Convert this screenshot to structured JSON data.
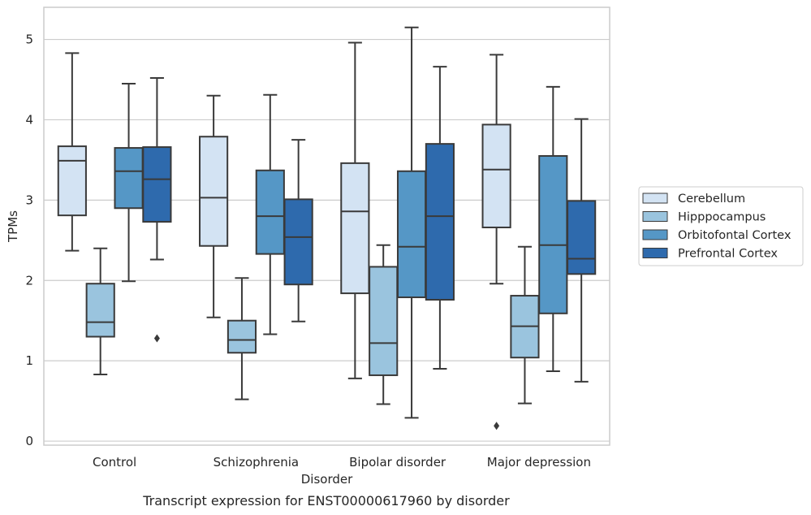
{
  "chart_data": {
    "type": "box",
    "title": "",
    "caption": "Transcript expression for ENST00000617960 by disorder",
    "xlabel": "Disorder",
    "ylabel": "TPMs",
    "ylim": [
      -0.05,
      5.4
    ],
    "yticks": [
      0,
      1,
      2,
      3,
      4,
      5
    ],
    "grid": true,
    "legend_position": "right",
    "categories": [
      "Control",
      "Schizophrenia",
      "Bipolar disorder",
      "Major depression"
    ],
    "series": [
      {
        "name": "Cerebellum",
        "color": "#d3e3f3",
        "boxes": [
          {
            "whislo": 2.37,
            "q1": 2.81,
            "med": 3.49,
            "q3": 3.67,
            "whishi": 4.83,
            "fliers": []
          },
          {
            "whislo": 1.54,
            "q1": 2.43,
            "med": 3.03,
            "q3": 3.79,
            "whishi": 4.3,
            "fliers": []
          },
          {
            "whislo": 0.78,
            "q1": 1.84,
            "med": 2.86,
            "q3": 3.46,
            "whishi": 4.96,
            "fliers": []
          },
          {
            "whislo": 1.96,
            "q1": 2.66,
            "med": 3.38,
            "q3": 3.94,
            "whishi": 4.81,
            "fliers": [
              0.19
            ]
          }
        ]
      },
      {
        "name": "Hipppocampus",
        "color": "#9ac4de",
        "boxes": [
          {
            "whislo": 0.83,
            "q1": 1.3,
            "med": 1.48,
            "q3": 1.96,
            "whishi": 2.4,
            "fliers": []
          },
          {
            "whislo": 0.52,
            "q1": 1.1,
            "med": 1.26,
            "q3": 1.5,
            "whishi": 2.03,
            "fliers": []
          },
          {
            "whislo": 0.46,
            "q1": 0.82,
            "med": 1.22,
            "q3": 2.17,
            "whishi": 2.44,
            "fliers": []
          },
          {
            "whislo": 0.47,
            "q1": 1.04,
            "med": 1.43,
            "q3": 1.81,
            "whishi": 2.42,
            "fliers": []
          }
        ]
      },
      {
        "name": "Orbitofontal Cortex",
        "color": "#5597c6",
        "boxes": [
          {
            "whislo": 1.99,
            "q1": 2.9,
            "med": 3.36,
            "q3": 3.65,
            "whishi": 4.45,
            "fliers": []
          },
          {
            "whislo": 1.33,
            "q1": 2.33,
            "med": 2.8,
            "q3": 3.37,
            "whishi": 4.31,
            "fliers": []
          },
          {
            "whislo": 0.29,
            "q1": 1.79,
            "med": 2.42,
            "q3": 3.36,
            "whishi": 5.15,
            "fliers": []
          },
          {
            "whislo": 0.87,
            "q1": 1.59,
            "med": 2.44,
            "q3": 3.55,
            "whishi": 4.41,
            "fliers": []
          }
        ]
      },
      {
        "name": "Prefrontal Cortex",
        "color": "#2e6aad",
        "boxes": [
          {
            "whislo": 2.26,
            "q1": 2.73,
            "med": 3.26,
            "q3": 3.66,
            "whishi": 4.52,
            "fliers": [
              1.28
            ]
          },
          {
            "whislo": 1.49,
            "q1": 1.95,
            "med": 2.54,
            "q3": 3.01,
            "whishi": 3.75,
            "fliers": []
          },
          {
            "whislo": 0.9,
            "q1": 1.76,
            "med": 2.8,
            "q3": 3.7,
            "whishi": 4.66,
            "fliers": []
          },
          {
            "whislo": 0.74,
            "q1": 2.08,
            "med": 2.27,
            "q3": 2.99,
            "whishi": 4.01,
            "fliers": []
          }
        ]
      }
    ]
  },
  "colors": {
    "grid": "#cccccc",
    "frame": "#cccccc",
    "box_edge": "#3a3a3a"
  }
}
